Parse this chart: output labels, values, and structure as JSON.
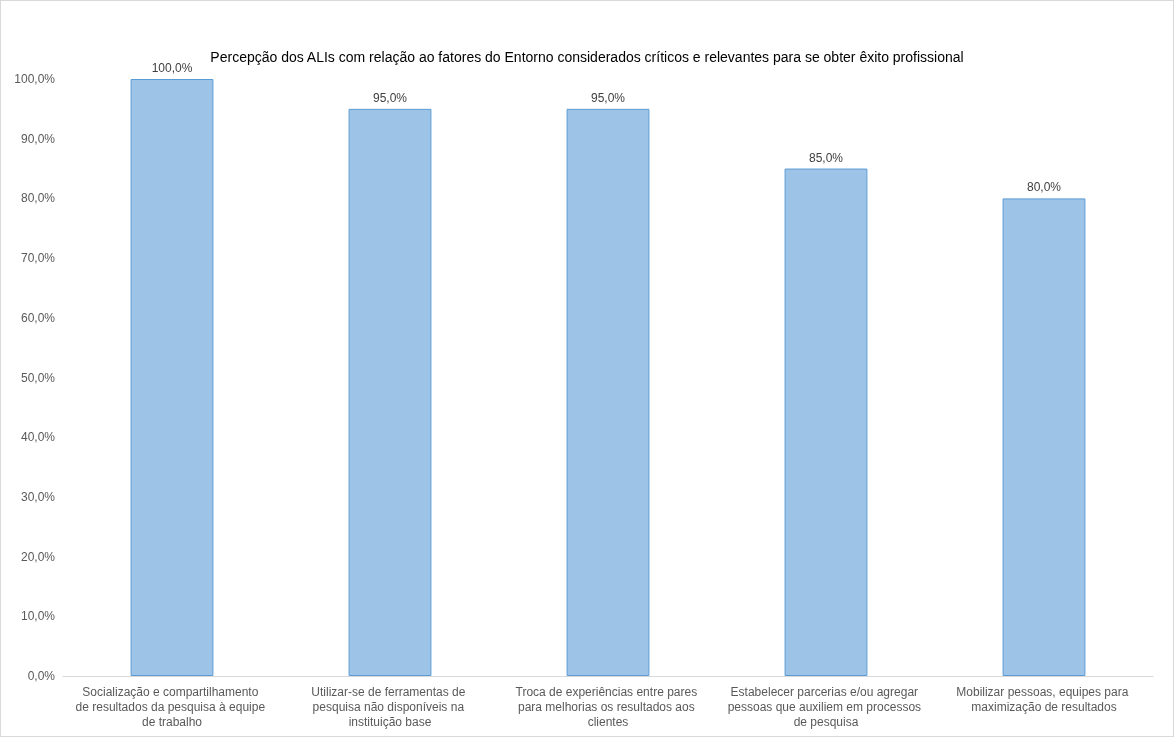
{
  "chart_data": {
    "type": "bar",
    "title": "Percepção dos ALIs com relação ao fatores do Entorno considerados críticos e relevantes para se obter êxito profissional",
    "categories": [
      "Socialização e compartilhamento de resultados da pesquisa à equipe de trabalho",
      "Utilizar-se de ferramentas de pesquisa não disponíveis na instituição base",
      "Troca de experiências entre pares para melhorias os resultados aos clientes",
      "Estabelecer parcerias e/ou agregar pessoas que auxiliem em processos de pesquisa",
      "Mobilizar pessoas, equipes para maximização de resultados"
    ],
    "values": [
      100,
      95,
      95,
      85,
      80
    ],
    "value_labels": [
      "100,0%",
      "95,0%",
      "95,0%",
      "85,0%",
      "80,0%"
    ],
    "color": "#9dc3e6",
    "ylim": [
      0,
      100
    ],
    "yticks": [
      {
        "value": 0,
        "label": "0,0%"
      },
      {
        "value": 10,
        "label": "10,0%"
      },
      {
        "value": 20,
        "label": "20,0%"
      },
      {
        "value": 30,
        "label": "30,0%"
      },
      {
        "value": 40,
        "label": "40,0%"
      },
      {
        "value": 50,
        "label": "50,0%"
      },
      {
        "value": 60,
        "label": "60,0%"
      },
      {
        "value": 70,
        "label": "70,0%"
      },
      {
        "value": 80,
        "label": "80,0%"
      },
      {
        "value": 90,
        "label": "90,0%"
      },
      {
        "value": 100,
        "label": "100,0%"
      }
    ],
    "grid": false
  }
}
